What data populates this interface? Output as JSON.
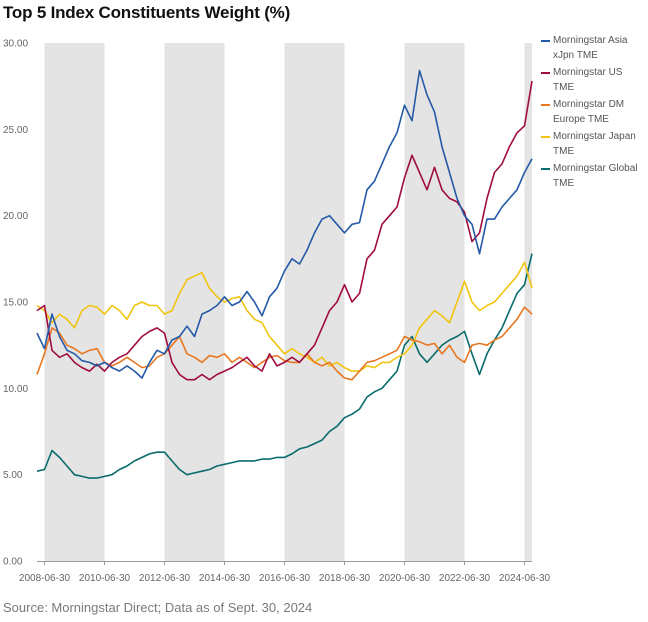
{
  "chart_data": {
    "type": "line",
    "title": "Top 5 Index Constituents Weight (%)",
    "xlabel": "",
    "ylabel": "",
    "ylim": [
      0,
      30
    ],
    "yticks": [
      "0.00",
      "5.00",
      "10.00",
      "15.00",
      "20.00",
      "25.00",
      "30.00"
    ],
    "ytick_values": [
      0,
      5,
      10,
      15,
      20,
      25,
      30
    ],
    "xlim": [
      "2008-03-31",
      "2024-09-30"
    ],
    "xticks": [
      "2008-06-30",
      "2010-06-30",
      "2012-06-30",
      "2014-06-30",
      "2016-06-30",
      "2018-06-30",
      "2020-06-30",
      "2022-06-30",
      "2024-06-30"
    ],
    "shaded_periods": [
      [
        "2008-06-30",
        "2010-06-30"
      ],
      [
        "2012-06-30",
        "2014-06-30"
      ],
      [
        "2016-06-30",
        "2018-06-30"
      ],
      [
        "2020-06-30",
        "2022-06-30"
      ],
      [
        "2024-06-30",
        "2024-09-30"
      ]
    ],
    "grid": false,
    "legend_position": "right",
    "x": [
      "2008-03",
      "2008-06",
      "2008-09",
      "2008-12",
      "2009-03",
      "2009-06",
      "2009-09",
      "2009-12",
      "2010-03",
      "2010-06",
      "2010-09",
      "2010-12",
      "2011-03",
      "2011-06",
      "2011-09",
      "2011-12",
      "2012-03",
      "2012-06",
      "2012-09",
      "2012-12",
      "2013-03",
      "2013-06",
      "2013-09",
      "2013-12",
      "2014-03",
      "2014-06",
      "2014-09",
      "2014-12",
      "2015-03",
      "2015-06",
      "2015-09",
      "2015-12",
      "2016-03",
      "2016-06",
      "2016-09",
      "2016-12",
      "2017-03",
      "2017-06",
      "2017-09",
      "2017-12",
      "2018-03",
      "2018-06",
      "2018-09",
      "2018-12",
      "2019-03",
      "2019-06",
      "2019-09",
      "2019-12",
      "2020-03",
      "2020-06",
      "2020-09",
      "2020-12",
      "2021-03",
      "2021-06",
      "2021-09",
      "2021-12",
      "2022-03",
      "2022-06",
      "2022-09",
      "2022-12",
      "2023-03",
      "2023-06",
      "2023-09",
      "2023-12",
      "2024-03",
      "2024-06",
      "2024-09"
    ],
    "series": [
      {
        "name": "Morningstar Asia xJpn TME",
        "color": "#2559a7",
        "values": [
          13.2,
          12.3,
          14.3,
          13.0,
          12.2,
          12.0,
          11.6,
          11.5,
          11.3,
          11.5,
          11.2,
          11.0,
          11.3,
          11.0,
          10.6,
          11.5,
          12.2,
          12.0,
          12.8,
          13.0,
          13.6,
          13.0,
          14.3,
          14.5,
          14.8,
          15.3,
          14.8,
          15.0,
          15.6,
          15.0,
          14.2,
          15.3,
          15.8,
          16.8,
          17.5,
          17.2,
          18.0,
          19.0,
          19.8,
          20.0,
          19.5,
          19.0,
          19.5,
          19.6,
          21.5,
          22.0,
          23.0,
          24.0,
          24.8,
          26.4,
          25.5,
          28.4,
          27.0,
          26.0,
          24.0,
          22.5,
          21.0,
          20.0,
          19.5,
          17.8,
          19.8,
          19.8,
          20.5,
          21.0,
          21.5,
          22.5,
          23.3
        ]
      },
      {
        "name": "Morningstar US TME",
        "color": "#a00c3f",
        "values": [
          14.5,
          14.8,
          12.2,
          11.8,
          12.0,
          11.5,
          11.2,
          11.0,
          11.4,
          11.0,
          11.5,
          11.8,
          12.0,
          12.5,
          13.0,
          13.3,
          13.5,
          13.2,
          11.5,
          10.8,
          10.5,
          10.5,
          10.8,
          10.5,
          10.8,
          11.0,
          11.2,
          11.5,
          11.8,
          11.3,
          11.0,
          12.0,
          11.3,
          11.5,
          11.8,
          11.5,
          12.0,
          12.5,
          13.5,
          14.5,
          15.0,
          16.0,
          15.0,
          15.5,
          17.5,
          18.0,
          19.5,
          20.0,
          20.5,
          22.2,
          23.5,
          22.5,
          21.5,
          22.8,
          21.5,
          21.0,
          20.8,
          20.2,
          18.5,
          19.0,
          21.0,
          22.5,
          23.0,
          24.0,
          24.8,
          25.2,
          27.8
        ]
      },
      {
        "name": "Morningstar DM Europe TME",
        "color": "#e87722",
        "values": [
          10.8,
          12.0,
          13.5,
          13.2,
          12.5,
          12.3,
          12.0,
          12.2,
          12.3,
          11.5,
          11.3,
          11.5,
          11.8,
          11.5,
          11.2,
          11.3,
          11.8,
          12.0,
          12.5,
          13.0,
          12.0,
          11.8,
          11.5,
          11.9,
          11.8,
          12.0,
          11.5,
          11.8,
          11.5,
          11.2,
          11.5,
          11.8,
          11.9,
          11.6,
          11.5,
          11.5,
          12.0,
          11.5,
          11.3,
          11.5,
          11.0,
          10.6,
          10.5,
          11.0,
          11.5,
          11.6,
          11.8,
          12.0,
          12.2,
          13.0,
          12.8,
          12.7,
          12.5,
          12.6,
          12.0,
          12.5,
          11.8,
          11.5,
          12.5,
          12.6,
          12.5,
          12.8,
          13.0,
          13.5,
          14.0,
          14.7,
          14.3
        ]
      },
      {
        "name": "Morningstar Japan TME",
        "color": "#f2c40f",
        "values": [
          14.8,
          14.5,
          13.8,
          14.3,
          14.0,
          13.5,
          14.5,
          14.8,
          14.7,
          14.3,
          14.8,
          14.5,
          14.0,
          14.8,
          15.0,
          14.8,
          14.8,
          14.3,
          14.5,
          15.5,
          16.3,
          16.5,
          16.7,
          15.8,
          15.3,
          15.0,
          15.2,
          15.3,
          14.5,
          14.0,
          13.8,
          13.0,
          12.5,
          12.0,
          12.3,
          12.0,
          11.8,
          11.5,
          11.8,
          11.3,
          11.5,
          11.2,
          11.0,
          11.0,
          11.3,
          11.2,
          11.5,
          11.5,
          11.8,
          12.0,
          12.5,
          13.5,
          14.0,
          14.5,
          14.2,
          13.8,
          15.0,
          16.2,
          15.0,
          14.5,
          14.8,
          15.0,
          15.5,
          16.0,
          16.5,
          17.3,
          15.8
        ]
      },
      {
        "name": "Morningstar Global TME",
        "color": "#0a6b6b",
        "values": [
          5.2,
          5.3,
          6.4,
          6.0,
          5.5,
          5.0,
          4.9,
          4.8,
          4.8,
          4.9,
          5.0,
          5.3,
          5.5,
          5.8,
          6.0,
          6.2,
          6.3,
          6.3,
          5.8,
          5.3,
          5.0,
          5.1,
          5.2,
          5.3,
          5.5,
          5.6,
          5.7,
          5.8,
          5.8,
          5.8,
          5.9,
          5.9,
          6.0,
          6.0,
          6.2,
          6.5,
          6.6,
          6.8,
          7.0,
          7.5,
          7.8,
          8.3,
          8.5,
          8.8,
          9.5,
          9.8,
          10.0,
          10.5,
          11.0,
          12.5,
          13.0,
          12.0,
          11.5,
          12.0,
          12.5,
          12.8,
          13.0,
          13.3,
          12.0,
          10.8,
          12.0,
          12.8,
          13.5,
          14.5,
          15.5,
          16.0,
          17.8
        ]
      }
    ]
  },
  "source": "Source: Morningstar Direct; Data as of Sept. 30, 2024",
  "legend": [
    {
      "label": "Morningstar Asia xJpn TME"
    },
    {
      "label": "Morningstar US TME"
    },
    {
      "label": "Morningstar DM Europe TME"
    },
    {
      "label": "Morningstar Japan TME"
    },
    {
      "label": "Morningstar Global TME"
    }
  ]
}
